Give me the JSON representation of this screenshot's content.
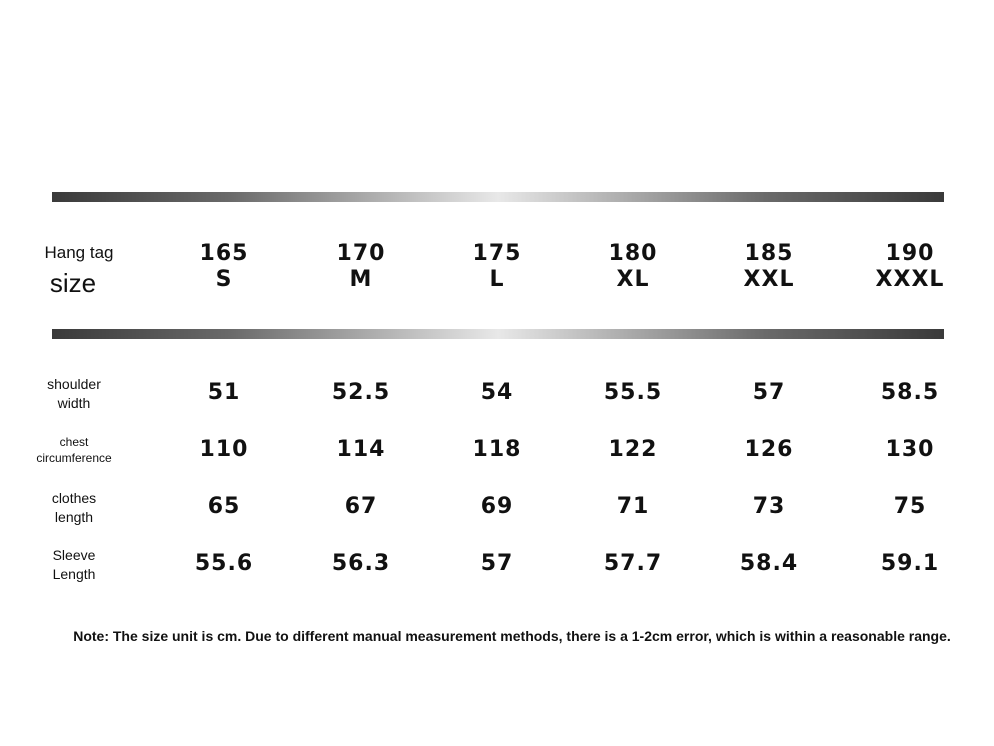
{
  "table": {
    "header": {
      "label_top": "Hang tag",
      "label_bottom": "size",
      "columns": [
        [
          "165",
          "S"
        ],
        [
          "170",
          "M"
        ],
        [
          "175",
          "L"
        ],
        [
          "180",
          "XL"
        ],
        [
          "185",
          "XXL"
        ],
        [
          "190",
          "XXXL"
        ]
      ]
    },
    "rows": [
      {
        "label": [
          "shoulder",
          "width"
        ],
        "values": [
          "51",
          "52.5",
          "54",
          "55.5",
          "57",
          "58.5"
        ]
      },
      {
        "label": [
          "chest",
          "circumference"
        ],
        "values": [
          "110",
          "114",
          "118",
          "122",
          "126",
          "130"
        ]
      },
      {
        "label": [
          "clothes",
          "length"
        ],
        "values": [
          "65",
          "67",
          "69",
          "71",
          "73",
          "75"
        ]
      },
      {
        "label": [
          "Sleeve",
          "Length"
        ],
        "values": [
          "55.6",
          "56.3",
          "57",
          "57.7",
          "58.4",
          "59.1"
        ]
      }
    ]
  },
  "note": "Note: The size unit is cm. Due to different manual measurement methods, there is a 1-2cm error, which is within a reasonable range."
}
